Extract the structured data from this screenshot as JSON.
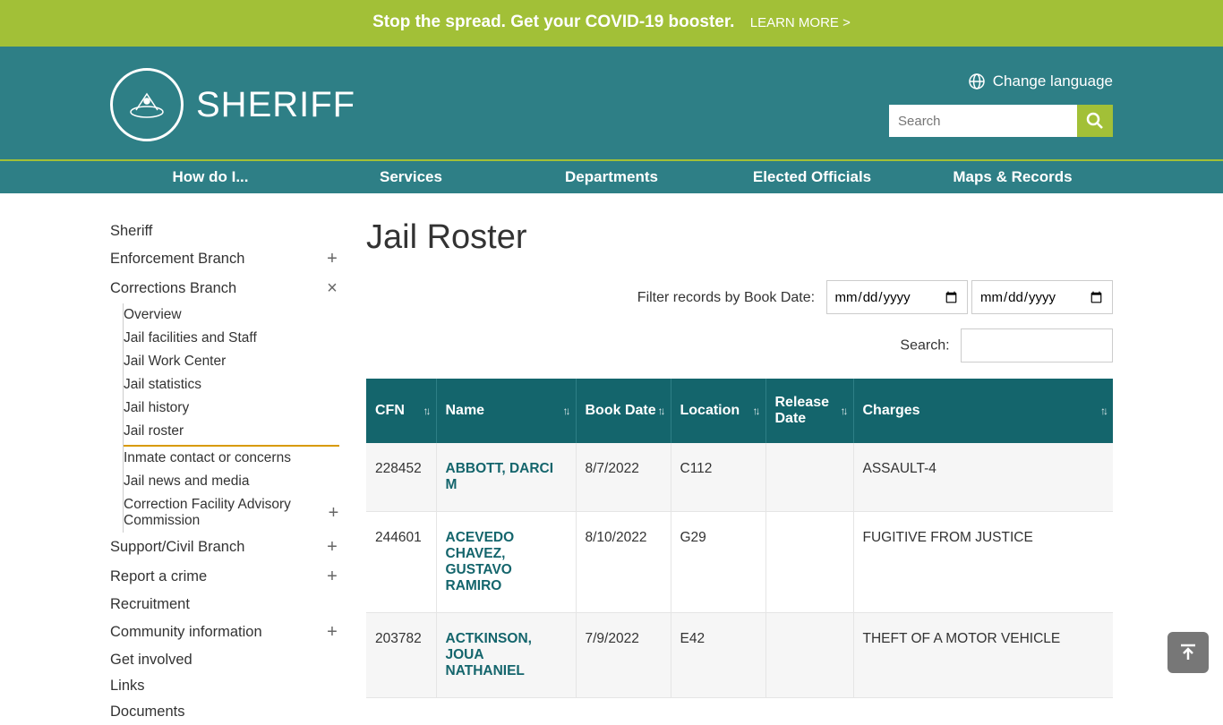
{
  "banner": {
    "text": "Stop the spread. Get your COVID-19 booster.",
    "link": "LEARN MORE >"
  },
  "header": {
    "site_title": "SHERIFF",
    "lang_label": "Change language",
    "search_placeholder": "Search"
  },
  "nav": [
    "How do I...",
    "Services",
    "Departments",
    "Elected Officials",
    "Maps & Records"
  ],
  "sidebar": {
    "items": [
      {
        "label": "Sheriff",
        "expand": ""
      },
      {
        "label": "Enforcement Branch",
        "expand": "+"
      },
      {
        "label": "Corrections Branch",
        "expand": "×"
      },
      {
        "label": "Support/Civil Branch",
        "expand": "+"
      },
      {
        "label": "Report a crime",
        "expand": "+"
      },
      {
        "label": "Recruitment",
        "expand": ""
      },
      {
        "label": "Community information",
        "expand": "+"
      },
      {
        "label": "Get involved",
        "expand": ""
      },
      {
        "label": "Links",
        "expand": ""
      },
      {
        "label": "Documents",
        "expand": ""
      }
    ],
    "sub": [
      {
        "label": "Overview",
        "expand": ""
      },
      {
        "label": "Jail facilities and Staff",
        "expand": ""
      },
      {
        "label": "Jail Work Center",
        "expand": ""
      },
      {
        "label": "Jail statistics",
        "expand": ""
      },
      {
        "label": "Jail history",
        "expand": ""
      },
      {
        "label": "Jail roster",
        "expand": "",
        "active": true
      },
      {
        "label": "Inmate contact or concerns",
        "expand": ""
      },
      {
        "label": "Jail news and media",
        "expand": ""
      },
      {
        "label": "Correction Facility Advisory Commission",
        "expand": "+"
      }
    ]
  },
  "main": {
    "title": "Jail Roster",
    "filter_label": "Filter records by Book Date:",
    "date_placeholder": "mm/dd/yyyy",
    "search_label": "Search:"
  },
  "table": {
    "columns": [
      "CFN",
      "Name",
      "Book Date",
      "Location",
      "Release Date",
      "Charges"
    ],
    "rows": [
      {
        "cfn": "228452",
        "name": "ABBOTT, DARCI M",
        "book": "8/7/2022",
        "loc": "C112",
        "rel": "",
        "charges": "ASSAULT-4"
      },
      {
        "cfn": "244601",
        "name": "ACEVEDO CHAVEZ, GUSTAVO RAMIRO",
        "book": "8/10/2022",
        "loc": "G29",
        "rel": "",
        "charges": "FUGITIVE FROM JUSTICE"
      },
      {
        "cfn": "203782",
        "name": "ACTKINSON, JOUA NATHANIEL",
        "book": "7/9/2022",
        "loc": "E42",
        "rel": "",
        "charges": "THEFT OF A MOTOR VEHICLE"
      }
    ]
  },
  "colors": {
    "banner_bg": "#a2c037",
    "header_bg": "#2e7f86",
    "th_bg": "#14656c",
    "accent": "#d89a00"
  }
}
